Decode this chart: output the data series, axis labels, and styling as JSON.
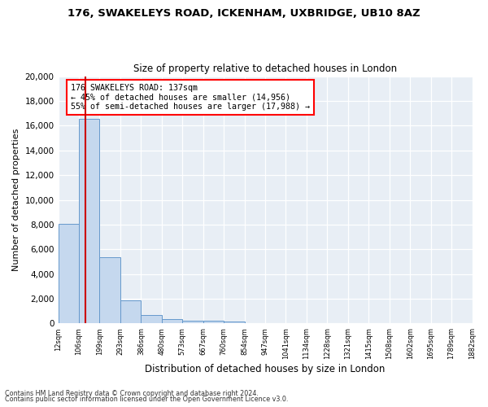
{
  "title1": "176, SWAKELEYS ROAD, ICKENHAM, UXBRIDGE, UB10 8AZ",
  "title2": "Size of property relative to detached houses in London",
  "xlabel": "Distribution of detached houses by size in London",
  "ylabel": "Number of detached properties",
  "bar_values": [
    8050,
    16550,
    5350,
    1850,
    680,
    340,
    220,
    200,
    160,
    0,
    0,
    0,
    0,
    0,
    0,
    0,
    0,
    0,
    0,
    0
  ],
  "bar_labels": [
    "12sqm",
    "106sqm",
    "199sqm",
    "293sqm",
    "386sqm",
    "480sqm",
    "573sqm",
    "667sqm",
    "760sqm",
    "854sqm",
    "947sqm",
    "1041sqm",
    "1134sqm",
    "1228sqm",
    "1321sqm",
    "1415sqm",
    "1508sqm",
    "1602sqm",
    "1695sqm",
    "1789sqm",
    "1882sqm"
  ],
  "bar_color": "#c5d8ee",
  "bar_edge_color": "#6699cc",
  "vline_color": "#cc0000",
  "annotation_title": "176 SWAKELEYS ROAD: 137sqm",
  "annotation_line1": "← 45% of detached houses are smaller (14,956)",
  "annotation_line2": "55% of semi-detached houses are larger (17,988) →",
  "ylim": [
    0,
    20000
  ],
  "yticks": [
    0,
    2000,
    4000,
    6000,
    8000,
    10000,
    12000,
    14000,
    16000,
    18000,
    20000
  ],
  "footer1": "Contains HM Land Registry data © Crown copyright and database right 2024.",
  "footer2": "Contains public sector information licensed under the Open Government Licence v3.0.",
  "bg_color": "#ffffff",
  "plot_bg_color": "#e8eef5"
}
